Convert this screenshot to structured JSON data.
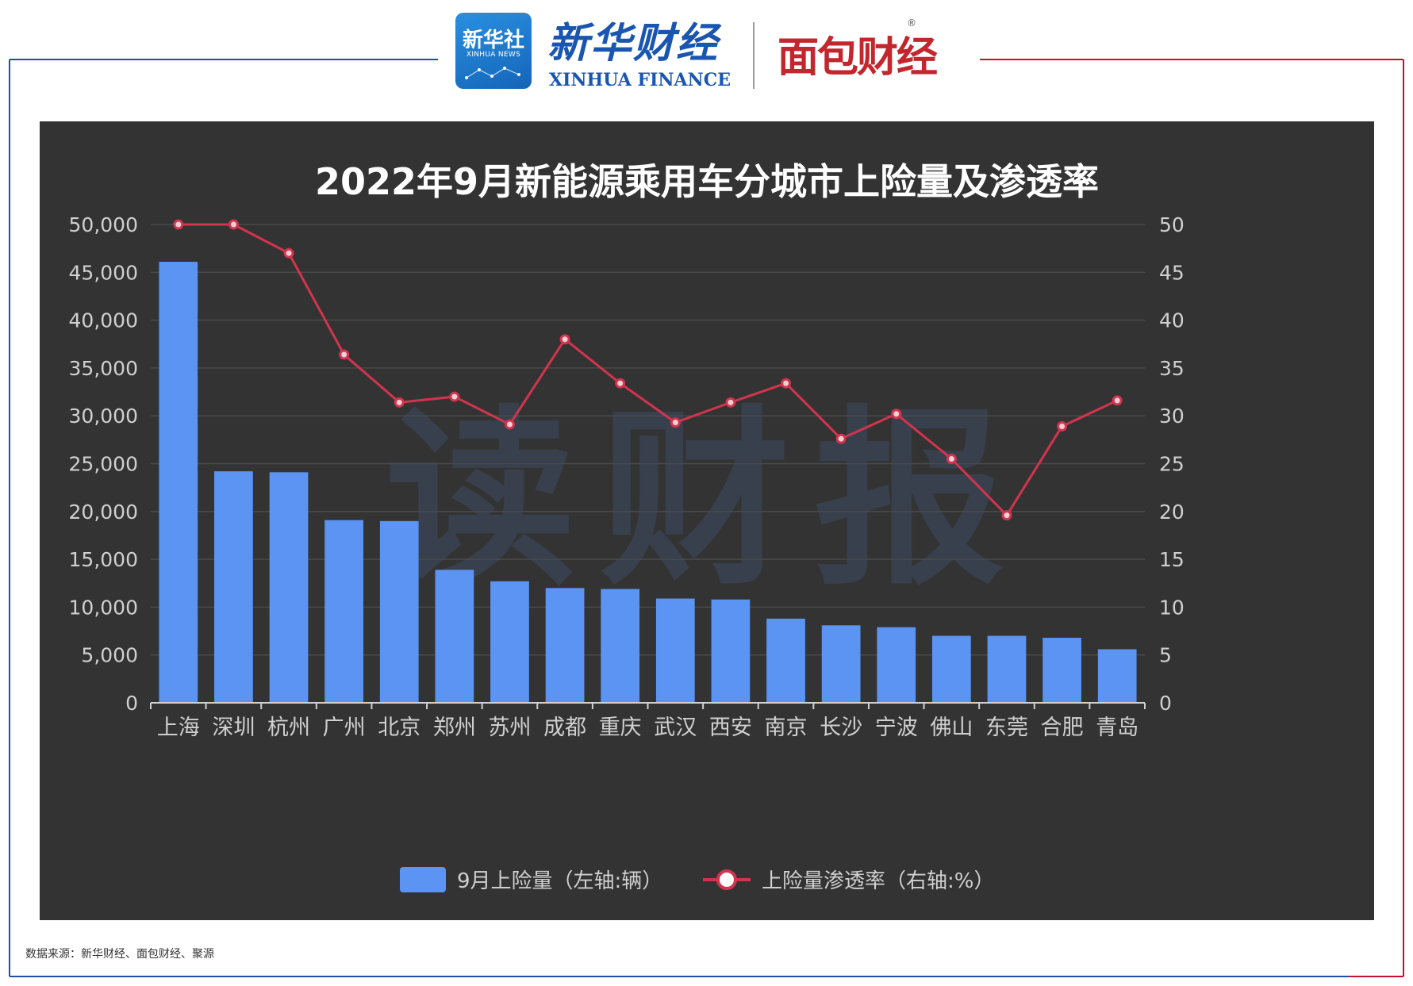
{
  "header": {
    "logo_cn": "新华社",
    "logo_en": "XINHUA NEWS",
    "brand_cn": "新华财经",
    "brand_en": "XINHUA FINANCE",
    "partner": "面包财经",
    "registered_mark": "®"
  },
  "watermark": "读财报",
  "source": "数据来源：新华财经、面包财经、聚源",
  "colors": {
    "frame_left": "#1f4fa8",
    "frame_right": "#c8102e",
    "chart_bg": "#333333",
    "bar": "#5b94f2",
    "line": "#d2344e",
    "text": "#d0d0d0"
  },
  "chart_data": {
    "type": "bar",
    "title": "2022年9月新能源乘用车分城市上险量及渗透率",
    "categories": [
      "上海",
      "深圳",
      "杭州",
      "广州",
      "北京",
      "郑州",
      "苏州",
      "成都",
      "重庆",
      "武汉",
      "西安",
      "南京",
      "长沙",
      "宁波",
      "佛山",
      "东莞",
      "合肥",
      "青岛"
    ],
    "series": [
      {
        "name": "9月上险量（左轴:辆）",
        "type": "bar",
        "axis": "left",
        "values": [
          46100,
          24200,
          24100,
          19100,
          19000,
          13900,
          12700,
          12000,
          11900,
          10900,
          10800,
          8800,
          8100,
          7900,
          7000,
          7000,
          6800,
          5600
        ]
      },
      {
        "name": "上险量渗透率（右轴:%）",
        "type": "line",
        "axis": "right",
        "values": [
          50,
          50,
          47,
          36.4,
          31.4,
          32,
          29.1,
          38,
          33.4,
          29.3,
          31.4,
          33.4,
          27.6,
          30.2,
          25.5,
          19.6,
          28.9,
          31.6
        ]
      }
    ],
    "y_left": {
      "min": 0,
      "max": 50000,
      "ticks": [
        "0",
        "5,000",
        "10,000",
        "15,000",
        "20,000",
        "25,000",
        "30,000",
        "35,000",
        "40,000",
        "45,000",
        "50,000"
      ]
    },
    "y_right": {
      "min": 0,
      "max": 50,
      "ticks": [
        "0",
        "5",
        "10",
        "15",
        "20",
        "25",
        "30",
        "35",
        "40",
        "45",
        "50"
      ]
    },
    "legend": [
      "9月上险量（左轴:辆）",
      "上险量渗透率（右轴:%）"
    ],
    "legend_position": "bottom-center",
    "grid": true
  }
}
